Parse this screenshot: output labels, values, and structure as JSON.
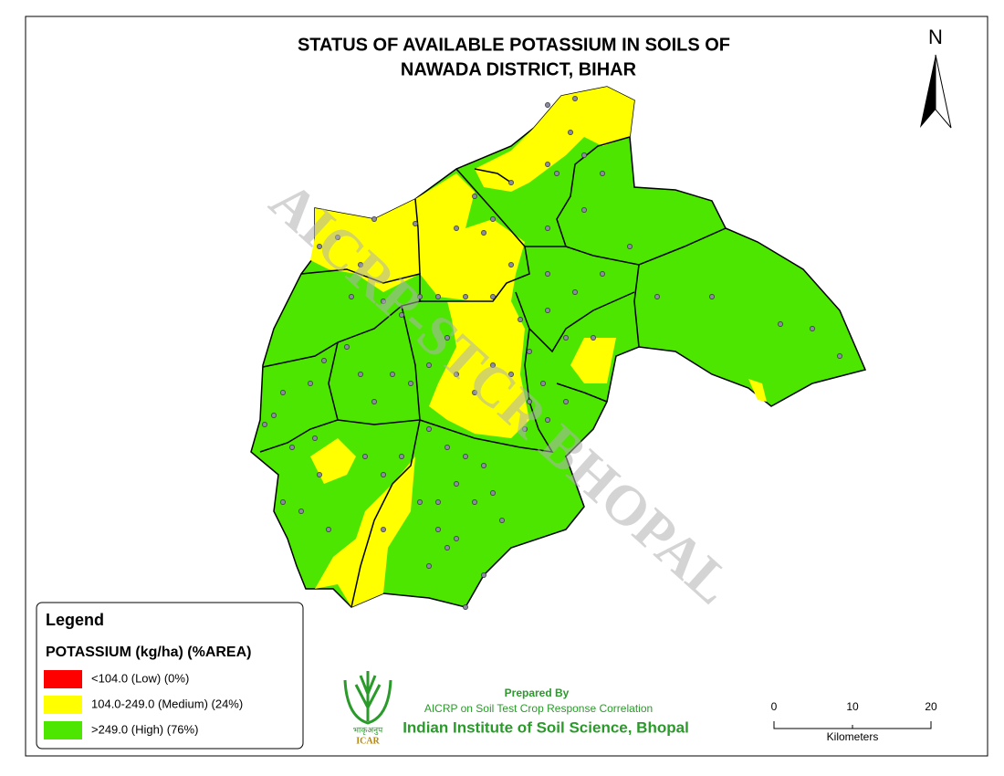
{
  "title": [
    "STATUS OF AVAILABLE POTASSIUM IN SOILS OF",
    "NAWADA DISTRICT, BIHAR"
  ],
  "north": "N",
  "watermark": "AICRP-STCR BHOPAL",
  "legend": {
    "title": "Legend",
    "subtitle": "POTASSIUM (kg/ha) (%AREA)",
    "items": [
      {
        "label": "<104.0 (Low) (0%)",
        "color": "#ff0000"
      },
      {
        "label": "104.0-249.0 (Medium) (24%)",
        "color": "#ffff00"
      },
      {
        "label": ">249.0 (High) (76%)",
        "color": "#4ce600"
      }
    ]
  },
  "credits": {
    "prepared": "Prepared By",
    "org": "AICRP on Soil Test Crop Response Correlation",
    "institute": "Indian Institute of Soil Science, Bhopal"
  },
  "logo": {
    "hindi": "भाकृअनुप",
    "name": "ICAR"
  },
  "scale_bar": {
    "ticks": [
      "0",
      "10",
      "20"
    ],
    "unit": "Kilometers"
  }
}
